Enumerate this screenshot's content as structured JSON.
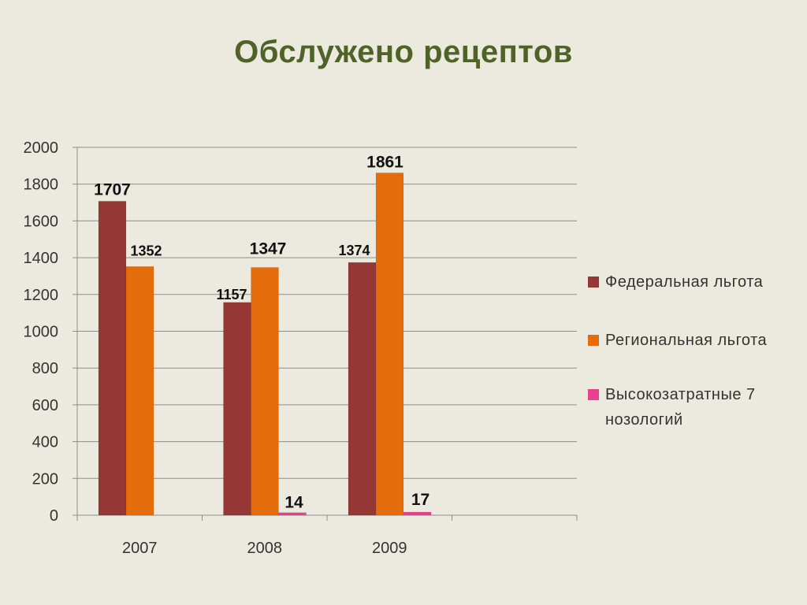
{
  "title": "Обслужено рецептов",
  "chart_data": {
    "type": "bar",
    "categories": [
      "2007",
      "2008",
      "2009"
    ],
    "series": [
      {
        "name": "Федеральная льгота",
        "color": "#953735",
        "values": [
          1707,
          1157,
          1374
        ]
      },
      {
        "name": "Региональная льгота",
        "color": "#E46C0A",
        "values": [
          1352,
          1347,
          1861
        ]
      },
      {
        "name": "Высокозатратные 7 нозологий",
        "color": "#E8408F",
        "values": [
          null,
          14,
          17
        ]
      }
    ],
    "data_labels": [
      [
        "1707",
        "1352",
        ""
      ],
      [
        "1157",
        "1347",
        "14"
      ],
      [
        "1374",
        "1861",
        "17"
      ]
    ],
    "ylim": [
      0,
      2000
    ],
    "yticks": [
      0,
      200,
      400,
      600,
      800,
      1000,
      1200,
      1400,
      1600,
      1800,
      2000
    ],
    "grid": true,
    "legend_position": "right"
  }
}
